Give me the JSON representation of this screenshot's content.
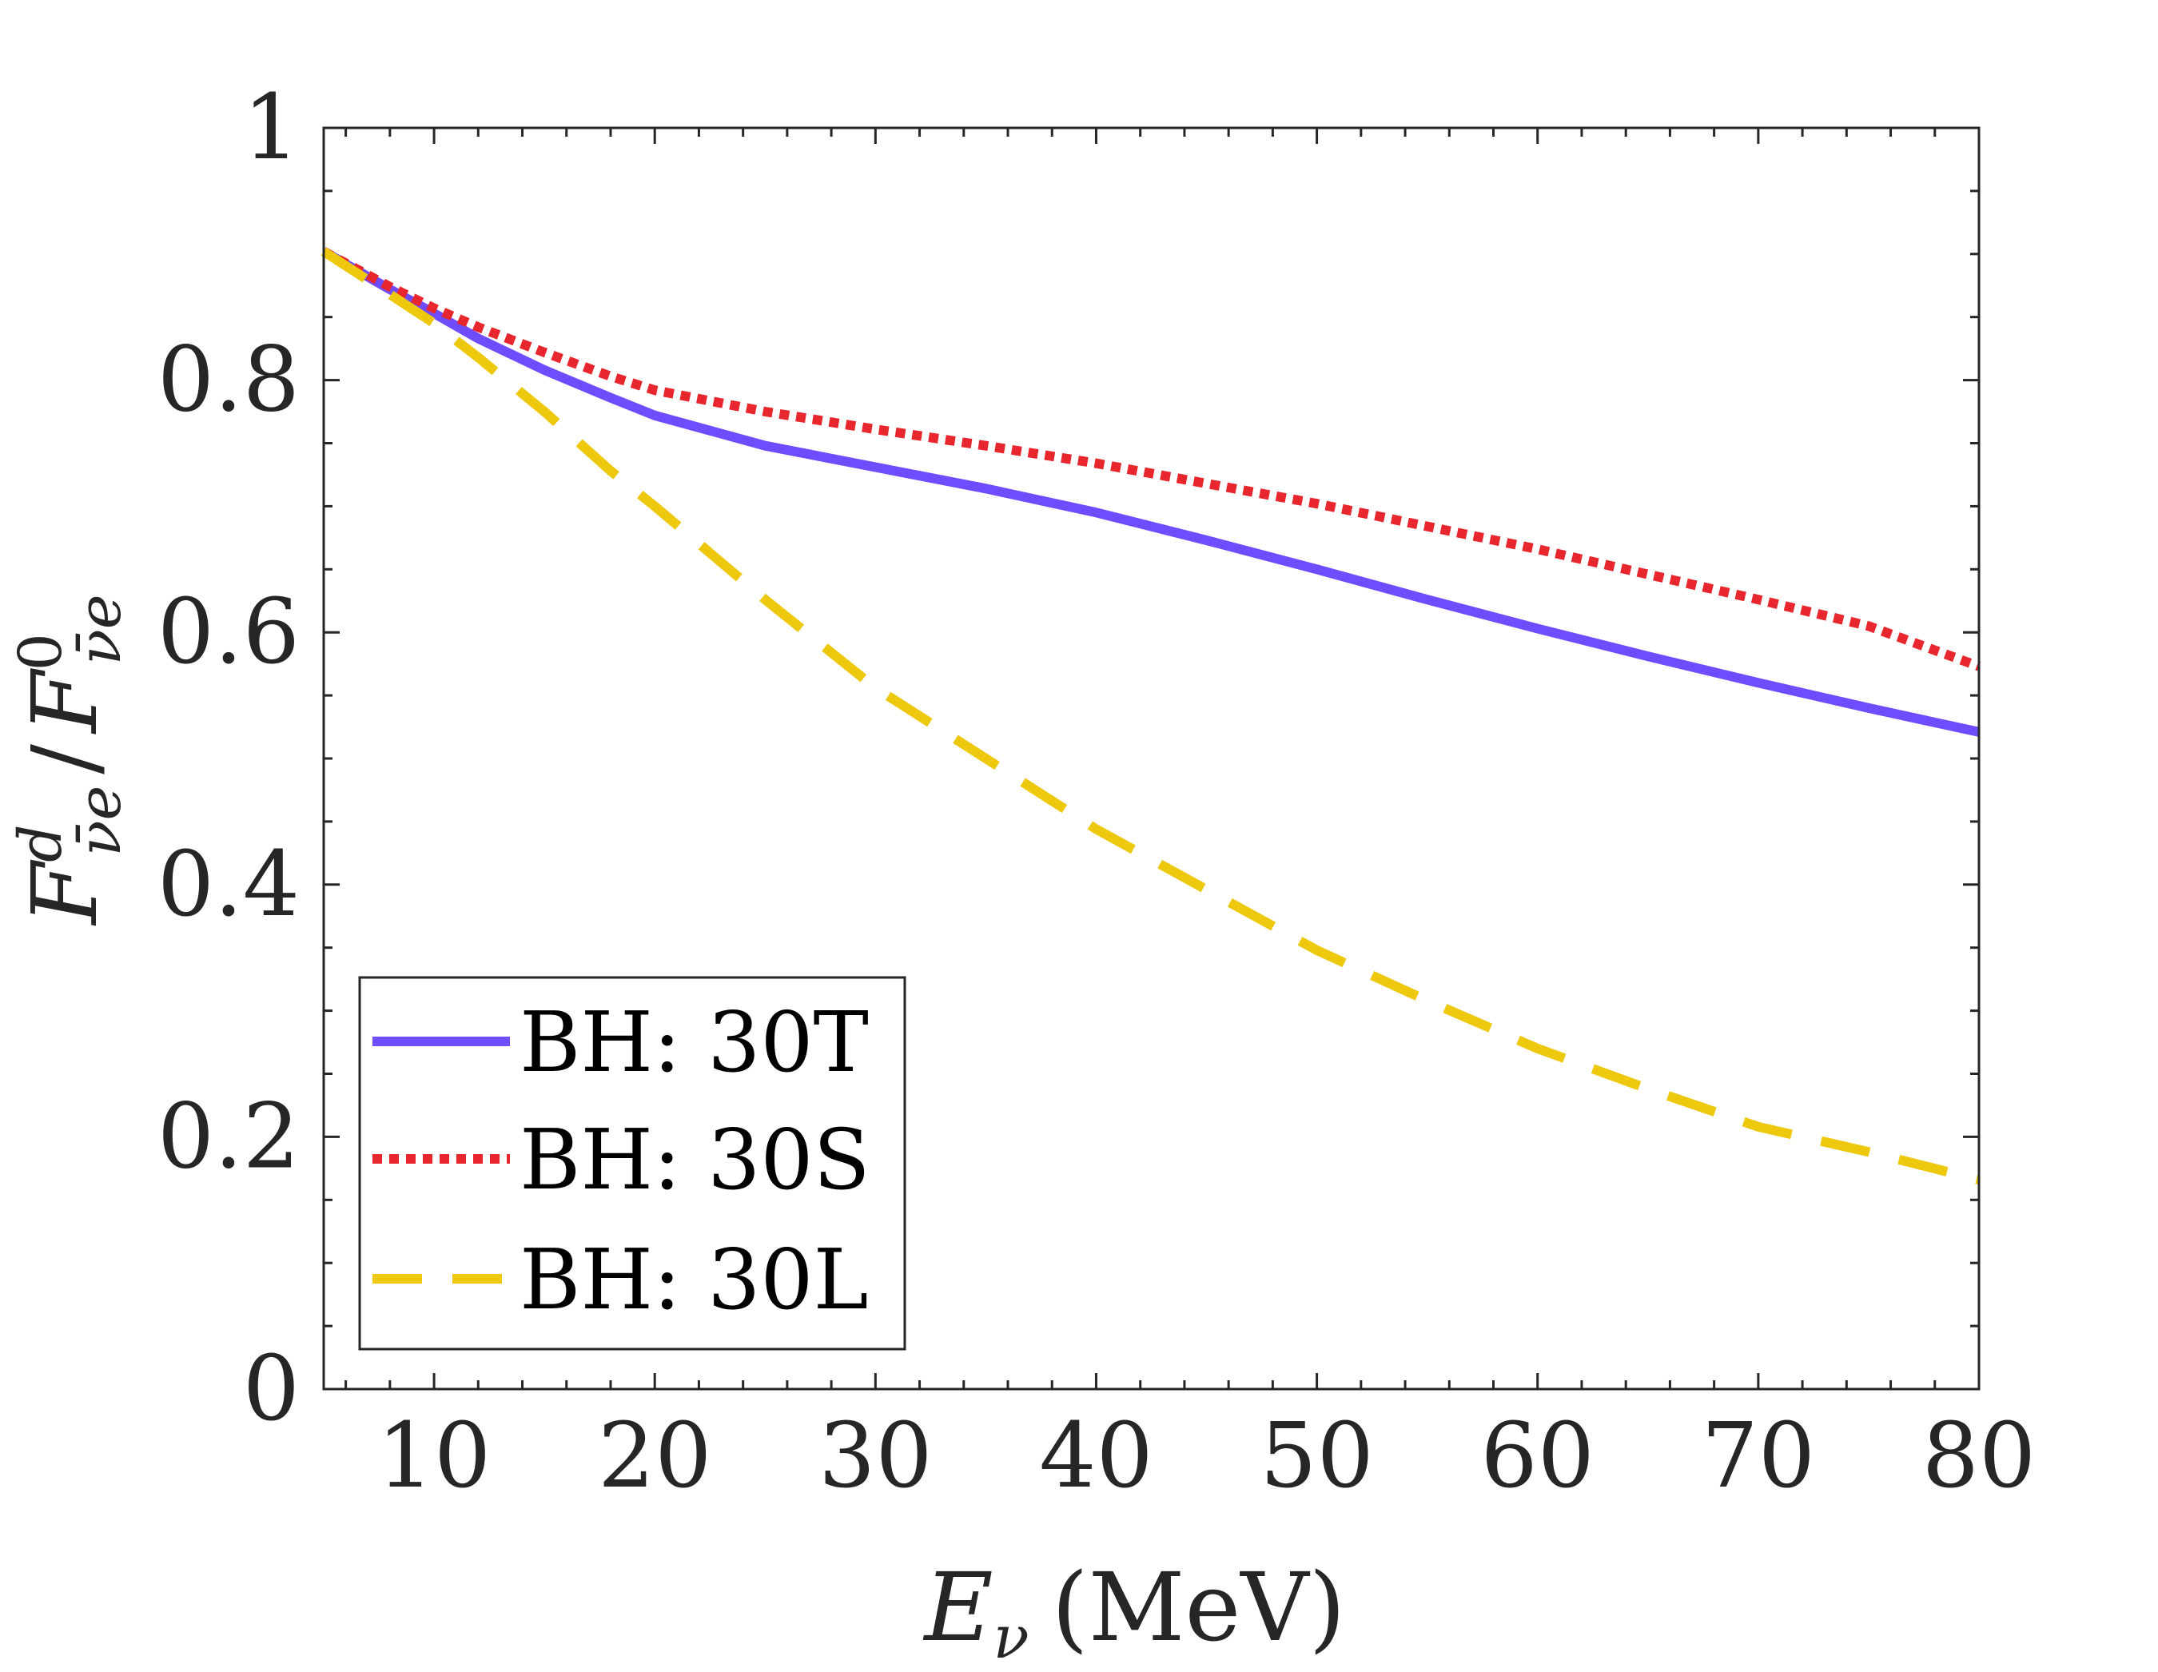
{
  "chart_data": {
    "type": "line",
    "xlabel": {
      "main": "E",
      "sub": "ν",
      "unit": "(MeV)"
    },
    "ylabel": {
      "num": "F",
      "num_sup": "d",
      "num_sub": "ν̄e",
      "sep": "/",
      "den": "F",
      "den_sup": "0",
      "den_sub": "ν̄e"
    },
    "xlim": [
      5,
      80
    ],
    "ylim": [
      0,
      1
    ],
    "x_ticks": [
      10,
      20,
      30,
      40,
      50,
      60,
      70,
      80
    ],
    "x_tick_labels": [
      "10",
      "20",
      "30",
      "40",
      "50",
      "60",
      "70",
      "80"
    ],
    "y_ticks": [
      0,
      0.2,
      0.4,
      0.6,
      0.8,
      1
    ],
    "y_tick_labels": [
      "0",
      "0.2",
      "0.4",
      "0.6",
      "0.8",
      "1"
    ],
    "x_minor_step": 2,
    "y_minor_step": 0.05,
    "legend_position": "bottom-left",
    "series": [
      {
        "name": "BH: 30T",
        "color": "#6f4cff",
        "style": "solid",
        "x": [
          5,
          8,
          10,
          12,
          15,
          18,
          20,
          25,
          30,
          35,
          40,
          45,
          50,
          55,
          60,
          65,
          70,
          75,
          80
        ],
        "values": [
          0.902,
          0.872,
          0.853,
          0.833,
          0.808,
          0.786,
          0.772,
          0.748,
          0.731,
          0.714,
          0.695,
          0.673,
          0.65,
          0.626,
          0.603,
          0.581,
          0.56,
          0.54,
          0.521
        ]
      },
      {
        "name": "BH: 30S",
        "color": "#e8262d",
        "style": "dotted",
        "x": [
          5,
          8,
          10,
          12,
          15,
          18,
          20,
          25,
          30,
          35,
          40,
          45,
          50,
          55,
          60,
          65,
          70,
          75,
          80
        ],
        "values": [
          0.902,
          0.874,
          0.857,
          0.842,
          0.822,
          0.803,
          0.792,
          0.775,
          0.761,
          0.748,
          0.734,
          0.718,
          0.702,
          0.684,
          0.666,
          0.646,
          0.626,
          0.605,
          0.573
        ]
      },
      {
        "name": "BH: 30L",
        "color": "#edc80c",
        "style": "dashed",
        "x": [
          5,
          8,
          10,
          12,
          15,
          18,
          20,
          25,
          30,
          35,
          40,
          45,
          50,
          55,
          60,
          65,
          70,
          75,
          80
        ],
        "values": [
          0.902,
          0.868,
          0.845,
          0.818,
          0.775,
          0.728,
          0.7,
          0.626,
          0.556,
          0.5,
          0.444,
          0.396,
          0.348,
          0.308,
          0.27,
          0.238,
          0.208,
          0.188,
          0.166
        ]
      }
    ]
  }
}
